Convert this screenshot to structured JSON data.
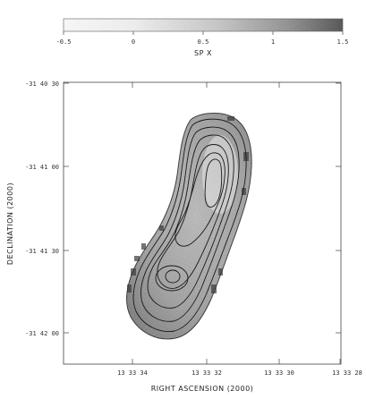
{
  "colorbar": {
    "ticks": [
      "-0.5",
      "0",
      "0.5",
      "1",
      "1.5"
    ],
    "tick_values": [
      -0.5,
      0,
      0.5,
      1,
      1.5
    ],
    "label": "SP X",
    "range": [
      -0.5,
      1.5
    ]
  },
  "axes": {
    "xlabel": "RIGHT ASCENSION (2000)",
    "ylabel": "DECLINATION (2000)",
    "x_ticks": [
      "13 33 34",
      "13 33 32",
      "13 33 30",
      "13 33 28"
    ],
    "y_ticks": [
      "-31 40 30",
      "-31 41 00",
      "-31 41 30",
      "-31 42 00"
    ]
  },
  "colors": {
    "background": "#ffffff",
    "contour": "#1a1a1a",
    "frame": "#444444"
  }
}
